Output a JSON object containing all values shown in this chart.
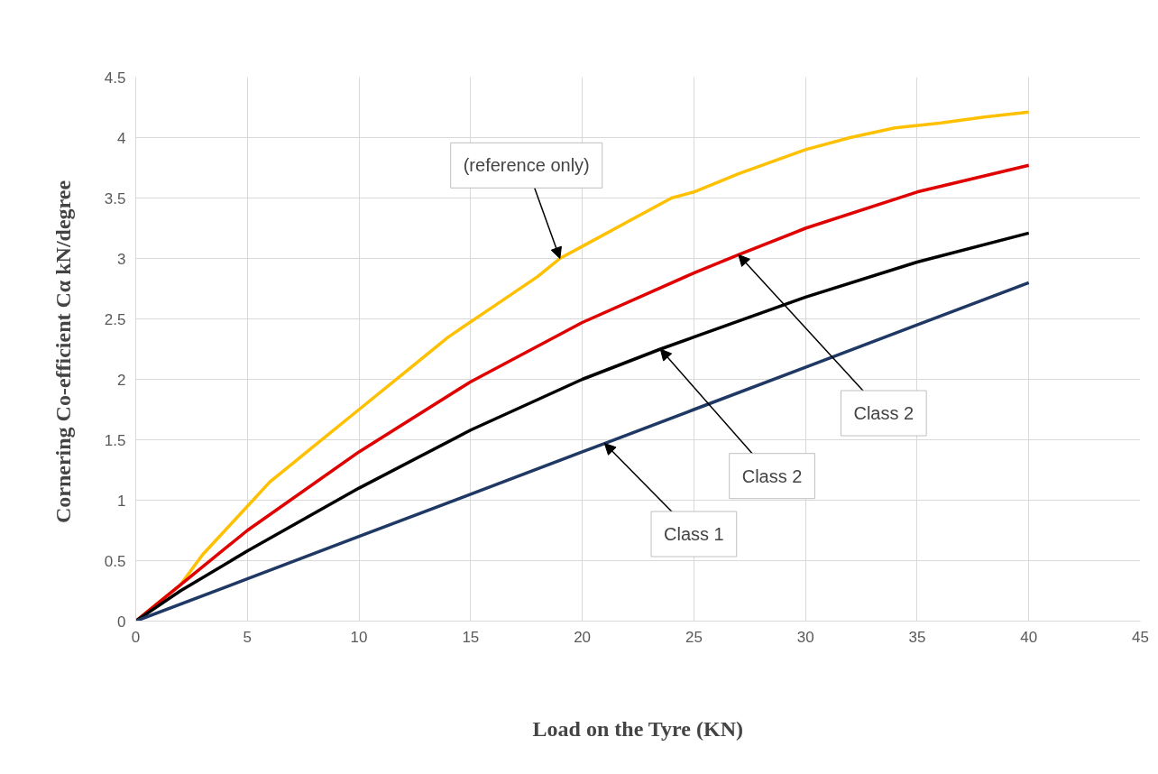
{
  "chart_data": {
    "type": "line",
    "xlabel": "Load on the Tyre (KN)",
    "ylabel": "Cornering Co-efficient Cα  kN/degree",
    "xlim": [
      0,
      45
    ],
    "xticks": [
      0,
      5,
      10,
      15,
      20,
      25,
      30,
      35,
      40,
      45
    ],
    "ylim": [
      0,
      4.5
    ],
    "yticks": [
      0,
      0.5,
      1,
      1.5,
      2,
      2.5,
      3,
      3.5,
      4,
      4.5
    ],
    "grid": true,
    "marker": "none",
    "line_style": "solid",
    "series": [
      {
        "color": "#ffc000",
        "x": [
          0,
          1,
          2,
          3,
          4,
          5,
          6,
          8,
          10,
          12,
          14,
          16,
          18,
          19,
          20,
          22,
          24,
          25,
          27,
          30,
          32,
          34,
          36,
          38,
          40
        ],
        "values": [
          0,
          0.15,
          0.3,
          0.55,
          0.75,
          0.95,
          1.15,
          1.45,
          1.75,
          2.05,
          2.35,
          2.6,
          2.85,
          3.0,
          3.1,
          3.3,
          3.5,
          3.55,
          3.7,
          3.9,
          4.0,
          4.08,
          4.12,
          4.17,
          4.21
        ]
      },
      {
        "color": "#e00000",
        "x": [
          0,
          2,
          5,
          10,
          15,
          20,
          25,
          27,
          30,
          35,
          40
        ],
        "values": [
          0,
          0.3,
          0.75,
          1.4,
          1.98,
          2.47,
          2.88,
          3.03,
          3.25,
          3.55,
          3.77
        ]
      },
      {
        "color": "#000000",
        "x": [
          0,
          2,
          5,
          10,
          15,
          20,
          23.5,
          25,
          30,
          35,
          40
        ],
        "values": [
          0,
          0.25,
          0.58,
          1.1,
          1.58,
          2.0,
          2.25,
          2.35,
          2.68,
          2.97,
          3.21
        ]
      },
      {
        "color": "#1f3864",
        "x": [
          0,
          5,
          10,
          15,
          20,
          21,
          25,
          30,
          35,
          40
        ],
        "values": [
          0,
          0.35,
          0.7,
          1.05,
          1.4,
          1.47,
          1.75,
          2.1,
          2.45,
          2.8
        ]
      }
    ],
    "annotations": [
      {
        "text": "(reference only)",
        "x": 19,
        "y": 3.0
      },
      {
        "text": "Class 2",
        "x": 27,
        "y": 3.03
      },
      {
        "text": "Class 2",
        "x": 23.5,
        "y": 2.25
      },
      {
        "text": "Class 1",
        "x": 21,
        "y": 1.47
      }
    ]
  }
}
